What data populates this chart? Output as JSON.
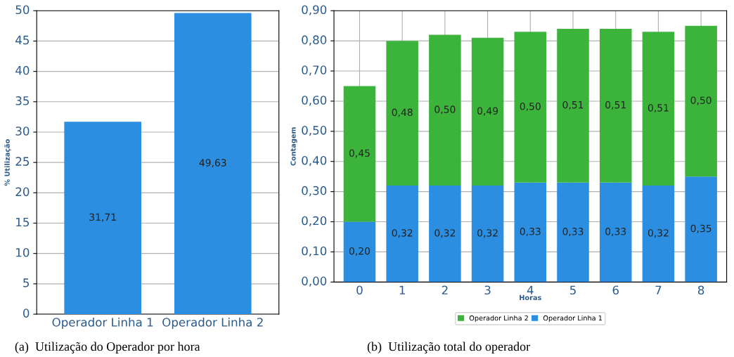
{
  "chart_data": [
    {
      "type": "bar",
      "categories": [
        "Operador Linha 1",
        "Operador Linha 2"
      ],
      "ylabel": "% Utilização",
      "series": [
        {
          "color": "#2b8ee0",
          "values": [
            31.71,
            49.63
          ],
          "value_labels": [
            "31,71",
            "49,63"
          ]
        }
      ],
      "ylim": [
        0,
        50
      ],
      "yticks": [
        0,
        5,
        10,
        15,
        20,
        25,
        30,
        35,
        40,
        45,
        50
      ],
      "grid": "y",
      "legend": false,
      "annotations": [
        "(a)  Utilização do Operador por hora"
      ]
    },
    {
      "type": "bar",
      "stacked": true,
      "categories": [
        "0",
        "1",
        "2",
        "3",
        "4",
        "5",
        "6",
        "7",
        "8"
      ],
      "xlabel": "Horas",
      "ylabel": "Contagem",
      "series": [
        {
          "name": "Operador Linha 1",
          "color": "#2b8ee0",
          "values": [
            0.2,
            0.32,
            0.32,
            0.32,
            0.33,
            0.33,
            0.33,
            0.32,
            0.35
          ],
          "value_labels": [
            "0,20",
            "0,32",
            "0,32",
            "0,32",
            "0,33",
            "0,33",
            "0,33",
            "0,32",
            "0,35"
          ]
        },
        {
          "name": "Operador Linha 2",
          "color": "#3cb43c",
          "values": [
            0.45,
            0.48,
            0.5,
            0.49,
            0.5,
            0.51,
            0.51,
            0.51,
            0.5
          ],
          "value_labels": [
            "0,45",
            "0,48",
            "0,50",
            "0,49",
            "0,50",
            "0,51",
            "0,51",
            "0,51",
            "0,50"
          ]
        }
      ],
      "ylim": [
        0,
        0.9
      ],
      "yticks": [
        {
          "value": 0,
          "label": "0,00"
        },
        {
          "value": 0.1,
          "label": "0,10"
        },
        {
          "value": 0.2,
          "label": "0,20"
        },
        {
          "value": 0.3,
          "label": "0,30"
        },
        {
          "value": 0.4,
          "label": "0,40"
        },
        {
          "value": 0.5,
          "label": "0,50"
        },
        {
          "value": 0.6,
          "label": "0,60"
        },
        {
          "value": 0.7,
          "label": "0,70"
        },
        {
          "value": 0.8,
          "label": "0,80"
        },
        {
          "value": 0.9,
          "label": "0,90"
        }
      ],
      "grid": true,
      "legend": "bottom",
      "annotations": [
        "(b)  Utilização total do operador"
      ]
    }
  ]
}
